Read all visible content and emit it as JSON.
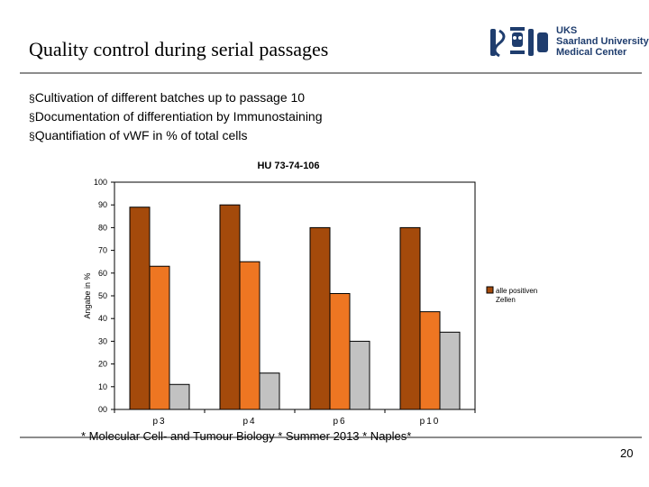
{
  "slide": {
    "title": "Quality control during serial passages",
    "bullets": [
      "Cultivation of different batches up to passage 10",
      "Documentation of differentiation by Immunostaining",
      "Quantifiation of vWF in % of total cells"
    ],
    "footer": "* Molecular Cell- and Tumour Biology * Summer 2013 * Naples*",
    "page_number": "20",
    "logo": {
      "icon": "uks-university-crest-icon",
      "lines": [
        "UKS",
        "Saarland University",
        "Medical Center"
      ]
    }
  },
  "chart_data": {
    "type": "bar",
    "title": "HU 73-74-106",
    "ylabel": "Angabe in %",
    "xlabel": "",
    "ylim": [
      0,
      100
    ],
    "yticks": [
      "00",
      "10",
      "20",
      "30",
      "40",
      "50",
      "60",
      "70",
      "80",
      "90",
      "100"
    ],
    "categories": [
      "p3",
      "p4",
      "p6",
      "p10"
    ],
    "series": [
      {
        "name": "alle positiven Zellen",
        "color": "#a44a0b",
        "values": [
          89,
          90,
          80,
          80
        ]
      },
      {
        "color": "#ee7622",
        "values": [
          63,
          65,
          51,
          43
        ]
      },
      {
        "color": "#c2c2c2",
        "values": [
          11,
          16,
          30,
          34
        ]
      }
    ],
    "legend_position": "right",
    "grid": false,
    "plot_background": "#ffffff"
  }
}
